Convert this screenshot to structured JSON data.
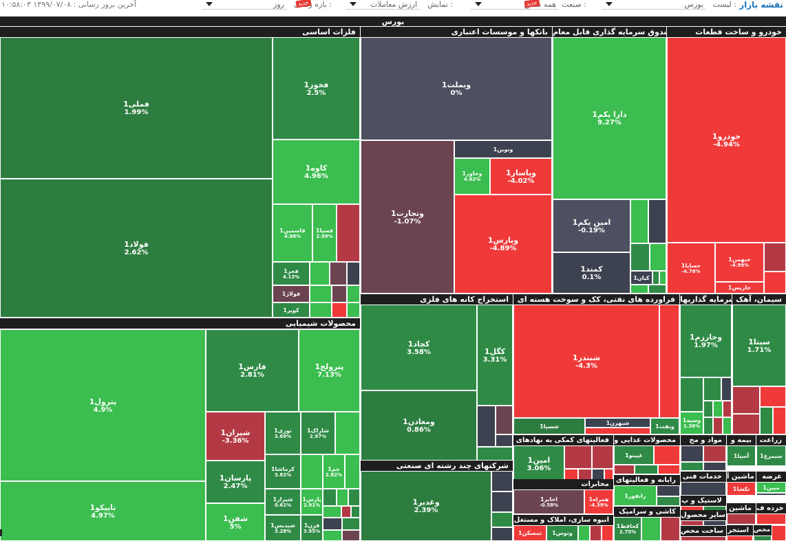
{
  "header": {
    "logo": "نقشه بازار",
    "list_label": "لیست :",
    "list_value": "بورس",
    "industry_label": "صنعت :",
    "industry_value": "همه صنایع",
    "display_label": "نمایش :",
    "display_value": "ارزش معاملات",
    "period_label": "بازه زمانی :",
    "period_value": "روز",
    "update_label": "آخرین بروز رسانی : ۱۳۹۹/۰۷/۰۸ ۱۰:۵۸:۰۳",
    "ribbon1": "جدید",
    "ribbon2": "جدید"
  },
  "root_title": "بورس",
  "sectors": {
    "metals": "فلزات اساسی",
    "banks": "بانکها و موسسات اعتباری",
    "etf": "صندوق سرمایه گذاری قابل معام",
    "auto": "خودرو و ساخت قطعات",
    "chem": "محصولات شیمیایی",
    "mining": "استخراج کانه های فلزی",
    "oil": "فراورده های نفتی، کک و سوخت هسته ای",
    "cement": "سیمان، آهک",
    "invest": "سرمایه گذاریها",
    "multi": "شرکتهای چند رشته ای صنعتی",
    "support": "فعالیتهای کمکی به نهادهای",
    "food": "محصولات غذایی و",
    "materials": "مواد و مح",
    "insurance": "بیمه و",
    "agri": "زراعت",
    "telecom": "مخابرات",
    "it": "رایانه و فعالیتهای",
    "tile": "کاشی و سرامیک",
    "realestate": "انبوه سازی، املاک و مستغل",
    "tech": "خدمات فنی",
    "machine": "ماشین آ",
    "transport": "عرضه",
    "plastic": "لاستیک و پ",
    "othermachine": "ماشین",
    "retail": "خرده ف",
    "othergoods": "سایر محصول",
    "metalprod": "ساخت محص",
    "extract": "استخر",
    "misc": "س محص"
  },
  "cells": {
    "famli": {
      "name": "فملی1",
      "pct": "1.99%"
    },
    "foolad": {
      "name": "فولاد1",
      "pct": "2.62%"
    },
    "fkhooz": {
      "name": "فخوز1",
      "pct": "2.5%"
    },
    "kaveh": {
      "name": "کاوه1",
      "pct": "4.96%"
    },
    "ghasmin": {
      "name": "قاسمین1",
      "pct": "4.98%"
    },
    "fsepa": {
      "name": "فسپا1",
      "pct": "2.99%"
    },
    "fajr": {
      "name": "فجر1",
      "pct": "4.13%"
    },
    "foolaj": {
      "name": "فولاژ1",
      "pct": ""
    },
    "koover": {
      "name": "کویر1",
      "pct": ""
    },
    "vbmellat": {
      "name": "وبملت1",
      "pct": "0%"
    },
    "vtejarat": {
      "name": "وتجارت1",
      "pct": "-1.07%"
    },
    "vnovin": {
      "name": "ونوین1",
      "pct": ""
    },
    "vkhavar": {
      "name": "وخاور1",
      "pct": "4.92%"
    },
    "vpasar": {
      "name": "وپاسار1",
      "pct": "-4.02%"
    },
    "vpars": {
      "name": "وپارس1",
      "pct": "-4.89%"
    },
    "dara": {
      "name": "دارا یکم1",
      "pct": "9.27%"
    },
    "amin": {
      "name": "امین یکم1",
      "pct": "-0.19%"
    },
    "kamand": {
      "name": "کمند1",
      "pct": "0.1%"
    },
    "kian": {
      "name": "کیان1",
      "pct": ""
    },
    "khodro": {
      "name": "خودرو1",
      "pct": "-4.94%"
    },
    "khsapa": {
      "name": "خساپا1",
      "pct": "-4.78%"
    },
    "khbahman": {
      "name": "خبهمن1",
      "pct": "-4.99%"
    },
    "kharis": {
      "name": "خاریس1",
      "pct": ""
    },
    "petrol": {
      "name": "پترول1",
      "pct": "4.9%"
    },
    "tapiko": {
      "name": "تاپیکو1",
      "pct": "4.97%"
    },
    "fars": {
      "name": "فارس1",
      "pct": "2.81%"
    },
    "petrolij": {
      "name": "پترولج1",
      "pct": "7.13%"
    },
    "shiran": {
      "name": "شیران1",
      "pct": "-3.36%"
    },
    "noori": {
      "name": "نوری1",
      "pct": "3.69%"
    },
    "sharak": {
      "name": "شاراک1",
      "pct": "2.97%"
    },
    "parsan": {
      "name": "پارسان1",
      "pct": "2.47%"
    },
    "kermasha": {
      "name": "کرماشا1",
      "pct": "3.82%"
    },
    "jam": {
      "name": "جم1",
      "pct": "2.82%"
    },
    "shiraz": {
      "name": "شیراز1",
      "pct": "0.61%"
    },
    "pars": {
      "name": "پارس1",
      "pct": "2.91%"
    },
    "shafan": {
      "name": "شفن1",
      "pct": "5%"
    },
    "shadis": {
      "name": "شپدیس1",
      "pct": "3.28%"
    },
    "faran": {
      "name": "فرن1",
      "pct": "3.95%"
    },
    "kechad": {
      "name": "کچاد1",
      "pct": "3.58%"
    },
    "kegol": {
      "name": "کگل1",
      "pct": "3.31%"
    },
    "madan": {
      "name": "ومعادن1",
      "pct": "0.86%"
    },
    "shebandar": {
      "name": "شبندر1",
      "pct": "-4.3%"
    },
    "shespa": {
      "name": "شسپا1",
      "pct": ""
    },
    "shebahran": {
      "name": "شبهرن1",
      "pct": ""
    },
    "vanaft": {
      "name": "ونفت1",
      "pct": ""
    },
    "vsapa": {
      "name": "وسپه1",
      "pct": "1.36%"
    },
    "vkharazm": {
      "name": "وخارزم1",
      "pct": "1.97%"
    },
    "sita": {
      "name": "سیتا1",
      "pct": "1.71%"
    },
    "vghadir": {
      "name": "وغدیر1",
      "pct": "2.39%"
    },
    "amin1": {
      "name": "امین1",
      "pct": "3.06%"
    },
    "ghpino": {
      "name": "غپینو1",
      "pct": ""
    },
    "asia": {
      "name": "آسیا1",
      "pct": ""
    },
    "simorgh": {
      "name": "سیمرغ1",
      "pct": ""
    },
    "akhaber": {
      "name": "اخابر1",
      "pct": "-0.58%"
    },
    "hamrah": {
      "name": "همراه1",
      "pct": "-4.39%"
    },
    "ranfor": {
      "name": "رانفور1",
      "pct": ""
    },
    "kehafez": {
      "name": "کحافظ1",
      "pct": "2.75%"
    },
    "vtoos": {
      "name": "وتوس1",
      "pct": ""
    },
    "thamsakan": {
      "name": "ثمسکن1",
      "pct": ""
    },
    "takeshe": {
      "name": "تکشا1",
      "pct": ""
    },
    "mabin": {
      "name": "مبین1",
      "pct": ""
    }
  }
}
